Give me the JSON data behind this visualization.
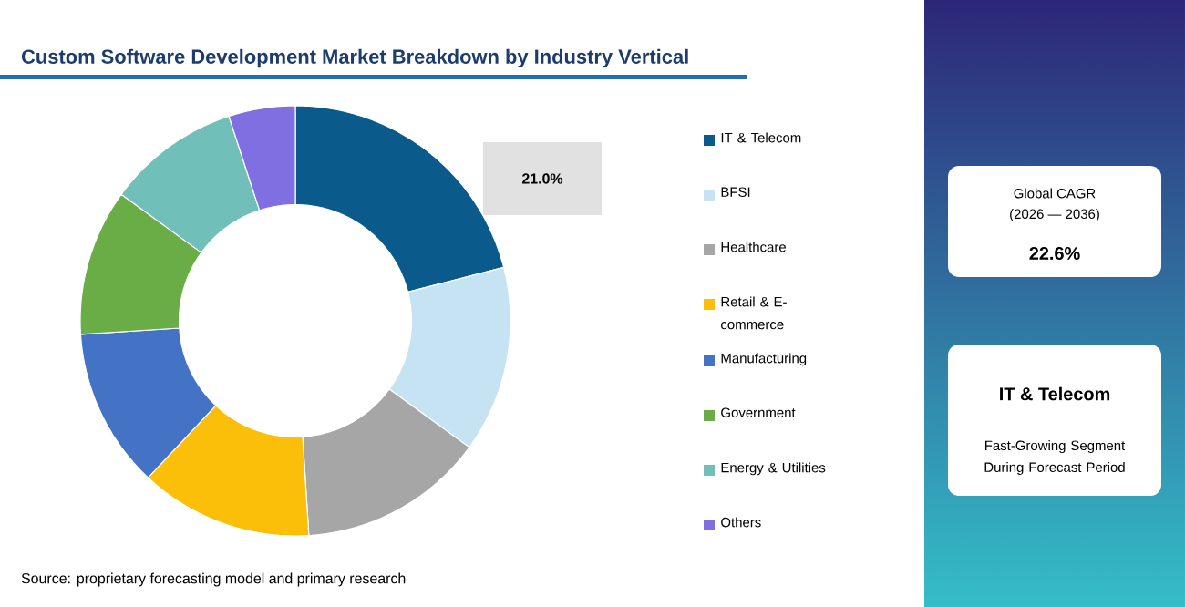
{
  "chart_data": {
    "type": "donut",
    "title": "Custom Software Development Market Breakdown by Industry Vertical",
    "categories": [
      "IT & Telecom",
      "BFSI",
      "Healthcare",
      "Retail & E-commerce",
      "Manufacturing",
      "Government",
      "Energy & Utilities",
      "Others"
    ],
    "values": [
      21,
      14,
      14,
      13,
      12,
      11,
      10,
      5
    ],
    "colors": [
      "#0a5a8c",
      "#c5e3f2",
      "#a6a6a6",
      "#fbbf0a",
      "#4472c4",
      "#6aac46",
      "#70bfb8",
      "#7f6fe0"
    ],
    "value_labels": [
      "21.0%",
      null,
      null,
      null,
      null,
      null,
      null,
      null
    ],
    "legend": "right",
    "annotations": [
      "Global CAGR",
      "(2026 — 2036)",
      "22.6%",
      "IT & Telecom",
      "Fast-Growing Segment During Forecast Period",
      "Source: proprietary forecasting model and primary research"
    ]
  }
}
